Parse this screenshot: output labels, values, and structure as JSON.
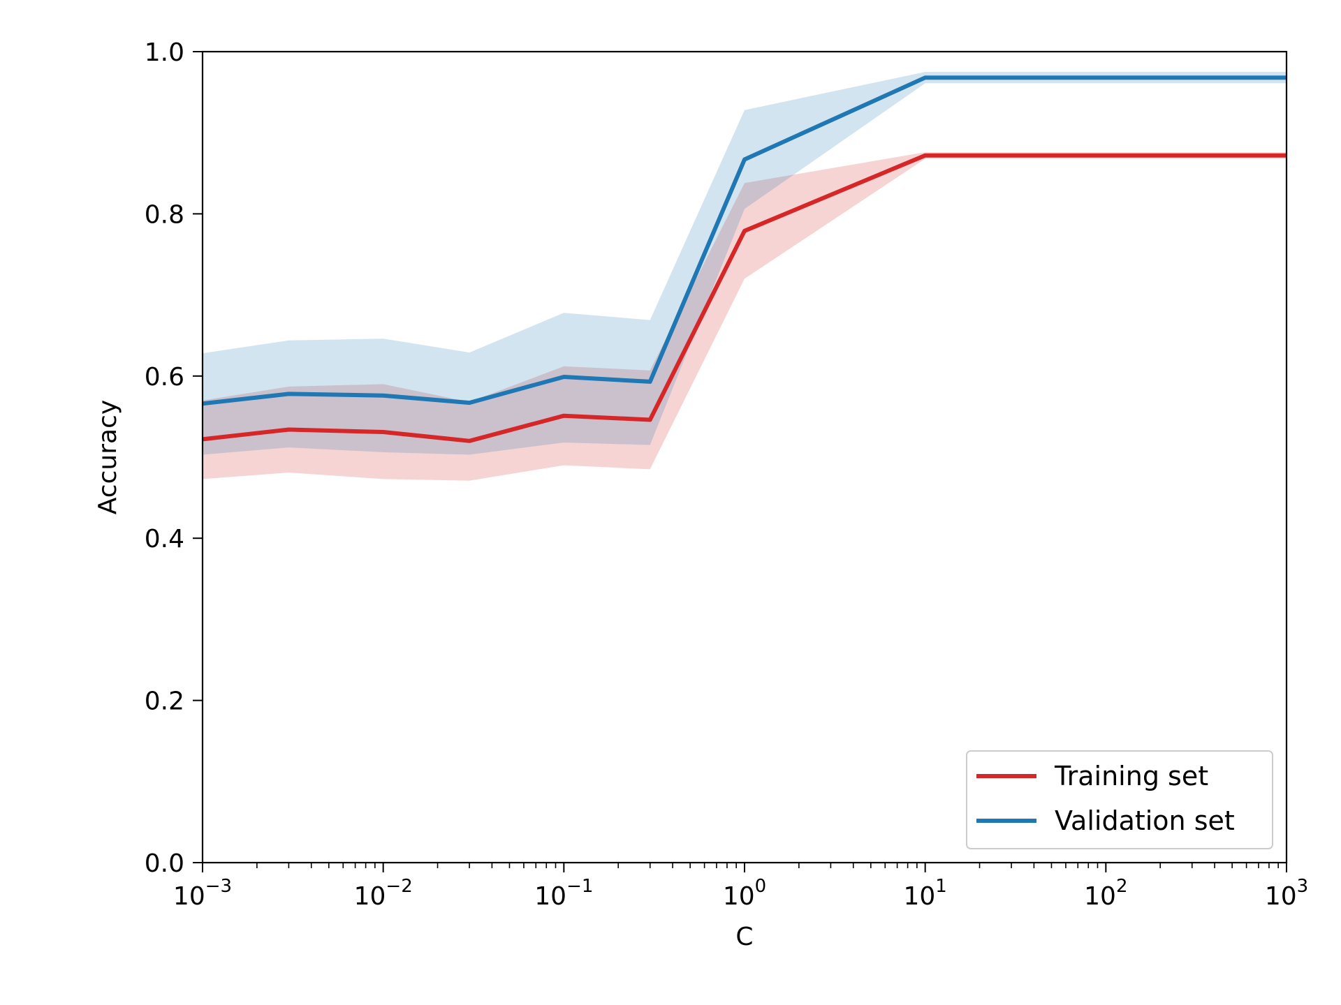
{
  "chart_data": {
    "type": "line",
    "xlabel": "C",
    "ylabel": "Accuracy",
    "xscale": "log",
    "xlim": [
      0.001,
      1000
    ],
    "ylim": [
      0.0,
      1.0
    ],
    "x": [
      0.001,
      0.003,
      0.01,
      0.03,
      0.1,
      0.3,
      1,
      10,
      100,
      1000
    ],
    "x_ticks": [
      {
        "value": 0.001,
        "base": "10",
        "exp": "−3"
      },
      {
        "value": 0.01,
        "base": "10",
        "exp": "−2"
      },
      {
        "value": 0.1,
        "base": "10",
        "exp": "−1"
      },
      {
        "value": 1,
        "base": "10",
        "exp": "0"
      },
      {
        "value": 10,
        "base": "10",
        "exp": "1"
      },
      {
        "value": 100,
        "base": "10",
        "exp": "2"
      },
      {
        "value": 1000,
        "base": "10",
        "exp": "3"
      }
    ],
    "y_ticks": [
      {
        "value": 0.0,
        "label": "0.0"
      },
      {
        "value": 0.2,
        "label": "0.2"
      },
      {
        "value": 0.4,
        "label": "0.4"
      },
      {
        "value": 0.6,
        "label": "0.6"
      },
      {
        "value": 0.8,
        "label": "0.8"
      },
      {
        "value": 1.0,
        "label": "1.0"
      }
    ],
    "grid": false,
    "legend_position": "lower-right",
    "series": [
      {
        "name": "Training set",
        "color": "#d62728",
        "values": [
          0.522,
          0.534,
          0.531,
          0.52,
          0.551,
          0.546,
          0.779,
          0.872,
          0.872,
          0.872
        ],
        "lower": [
          0.473,
          0.481,
          0.473,
          0.471,
          0.49,
          0.485,
          0.72,
          0.868,
          0.868,
          0.868
        ],
        "upper": [
          0.57,
          0.587,
          0.59,
          0.568,
          0.612,
          0.607,
          0.838,
          0.876,
          0.876,
          0.876
        ]
      },
      {
        "name": "Validation set",
        "color": "#1f77b4",
        "values": [
          0.566,
          0.578,
          0.576,
          0.567,
          0.599,
          0.593,
          0.867,
          0.968,
          0.968,
          0.968
        ],
        "lower": [
          0.503,
          0.512,
          0.506,
          0.503,
          0.518,
          0.515,
          0.806,
          0.961,
          0.961,
          0.961
        ],
        "upper": [
          0.628,
          0.644,
          0.646,
          0.629,
          0.678,
          0.669,
          0.928,
          0.975,
          0.975,
          0.975
        ]
      }
    ]
  }
}
